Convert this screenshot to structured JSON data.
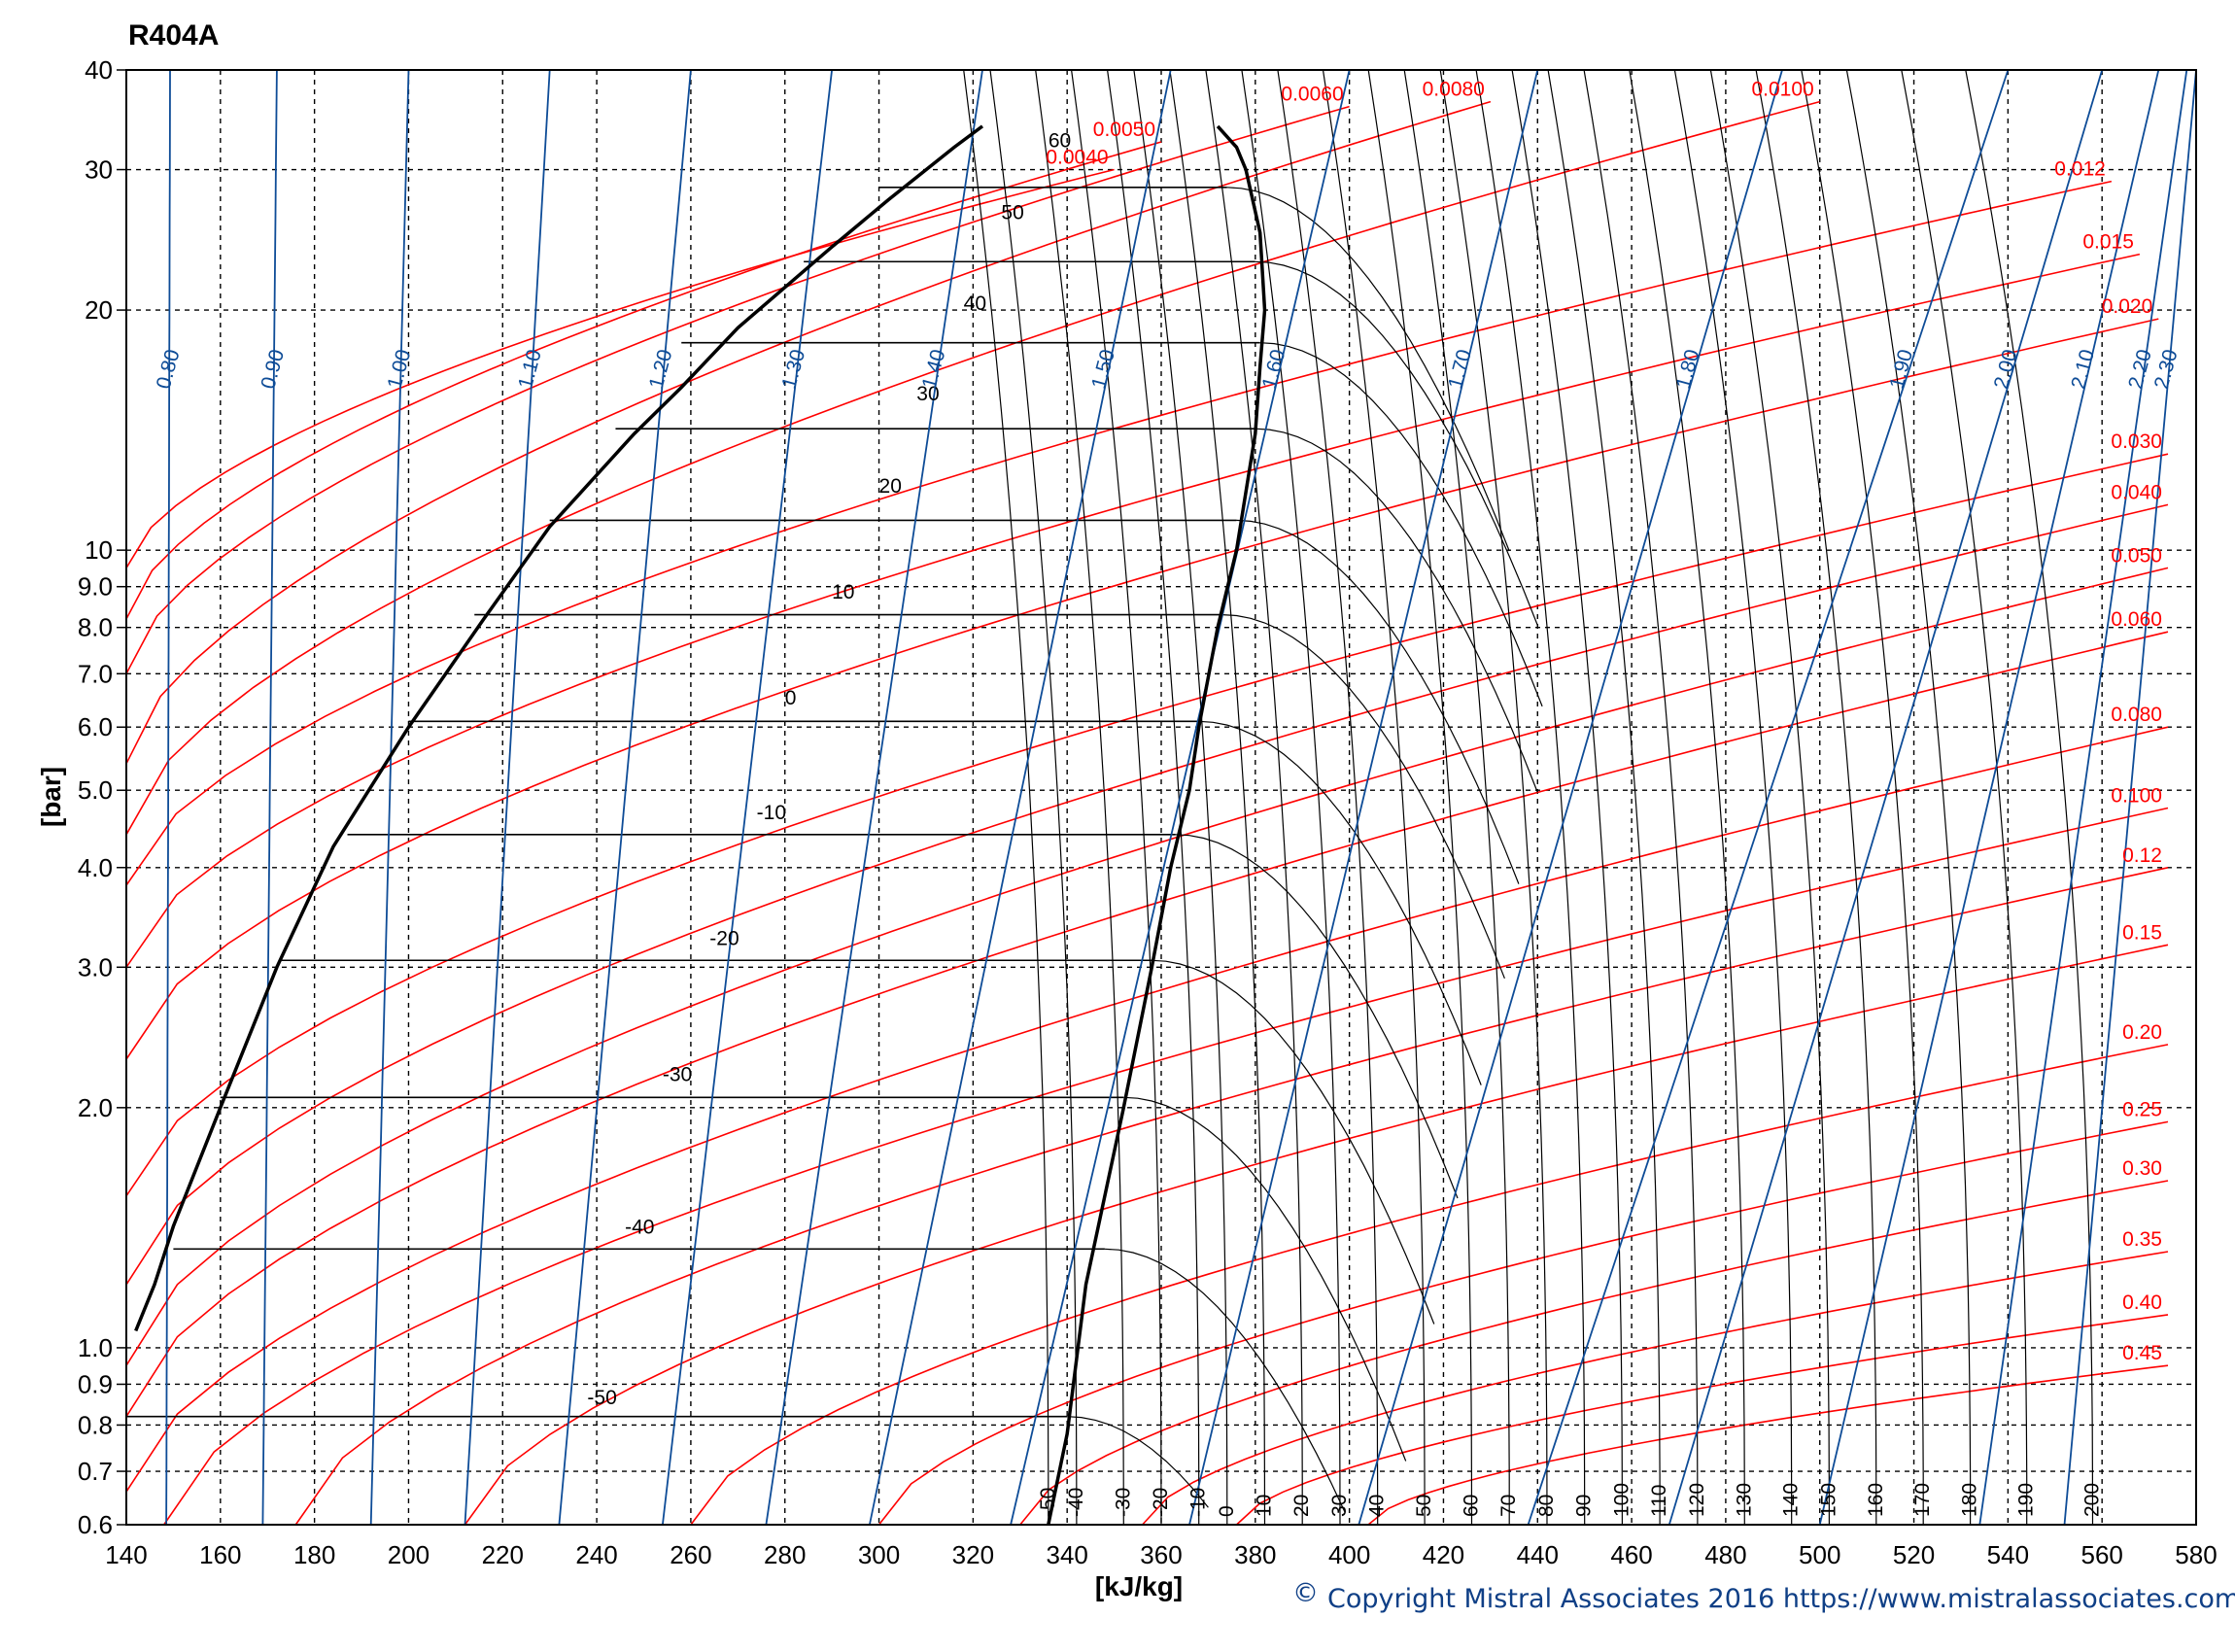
{
  "chart_data": {
    "type": "line",
    "title": "R404A",
    "xlabel": "[kJ/kg]",
    "ylabel": "[bar]",
    "xlim": [
      140,
      580
    ],
    "ylim": [
      0.6,
      40
    ],
    "yscale": "log",
    "grid": true,
    "x_ticks": [
      "140",
      "160",
      "180",
      "200",
      "220",
      "240",
      "260",
      "280",
      "300",
      "320",
      "340",
      "360",
      "380",
      "400",
      "420",
      "440",
      "460",
      "480",
      "500",
      "520",
      "540",
      "560",
      "580"
    ],
    "y_ticks": [
      {
        "value": 0.6,
        "label": "0.6"
      },
      {
        "value": 0.7,
        "label": "0.7"
      },
      {
        "value": 0.8,
        "label": "0.8"
      },
      {
        "value": 0.9,
        "label": "0.9"
      },
      {
        "value": 1.0,
        "label": "1.0"
      },
      {
        "value": 2.0,
        "label": "2.0"
      },
      {
        "value": 3.0,
        "label": "3.0"
      },
      {
        "value": 4.0,
        "label": "4.0"
      },
      {
        "value": 5.0,
        "label": "5.0"
      },
      {
        "value": 6.0,
        "label": "6.0"
      },
      {
        "value": 7.0,
        "label": "7.0"
      },
      {
        "value": 8.0,
        "label": "8.0"
      },
      {
        "value": 9.0,
        "label": "9.0"
      },
      {
        "value": 10,
        "label": "10"
      },
      {
        "value": 20,
        "label": "20"
      },
      {
        "value": 30,
        "label": "30"
      },
      {
        "value": 40,
        "label": "40"
      }
    ],
    "saturation_dome": {
      "liquid": [
        [
          142,
          1.05
        ],
        [
          146,
          1.2
        ],
        [
          150,
          1.42
        ],
        [
          160,
          2.0
        ],
        [
          172,
          3.0
        ],
        [
          184,
          4.25
        ],
        [
          200,
          6.0
        ],
        [
          216,
          8.2
        ],
        [
          230,
          10.7
        ],
        [
          248,
          14.0
        ],
        [
          258,
          16.0
        ],
        [
          270,
          19.0
        ],
        [
          290,
          24.0
        ],
        [
          302,
          27.5
        ],
        [
          316,
          32.0
        ],
        [
          322,
          34.0
        ]
      ],
      "vapor": [
        [
          336,
          0.6
        ],
        [
          340,
          0.78
        ],
        [
          344,
          1.2
        ],
        [
          352,
          2.0
        ],
        [
          358,
          3.0
        ],
        [
          362,
          4.0
        ],
        [
          366,
          5.0
        ],
        [
          368,
          6.0
        ],
        [
          372,
          8.0
        ],
        [
          376,
          10.0
        ],
        [
          380,
          14.0
        ],
        [
          381,
          17.0
        ],
        [
          382,
          20.0
        ],
        [
          381,
          25.0
        ],
        [
          378,
          30.0
        ],
        [
          376,
          32.0
        ],
        [
          372,
          34.0
        ]
      ]
    },
    "isotherms": [
      {
        "label": "60",
        "p": 28.5,
        "h_liq": 300.0,
        "h_vap": 374.0,
        "lx": 336,
        "ly": 32.0
      },
      {
        "label": "50",
        "p": 23.0,
        "h_liq": 284.0,
        "h_vap": 380.0,
        "lx": 326,
        "ly": 26.0
      },
      {
        "label": "40",
        "p": 18.2,
        "h_liq": 258.0,
        "h_vap": 381.0,
        "lx": 318,
        "ly": 20.0
      },
      {
        "label": "30",
        "p": 14.2,
        "h_liq": 244.0,
        "h_vap": 380.0,
        "lx": 308,
        "ly": 15.4
      },
      {
        "label": "20",
        "p": 10.9,
        "h_liq": 230.0,
        "h_vap": 376.0,
        "lx": 300,
        "ly": 11.8
      },
      {
        "label": "10",
        "p": 8.3,
        "h_liq": 214.0,
        "h_vap": 373.0,
        "lx": 290,
        "ly": 8.7
      },
      {
        "label": "0",
        "p": 6.1,
        "h_liq": 200.0,
        "h_vap": 368.0,
        "lx": 280,
        "ly": 6.4
      },
      {
        "label": "-10",
        "p": 4.4,
        "h_liq": 187.0,
        "h_vap": 363.0,
        "lx": 274,
        "ly": 4.6
      },
      {
        "label": "-20",
        "p": 3.06,
        "h_liq": 173.0,
        "h_vap": 358.0,
        "lx": 264,
        "ly": 3.2
      },
      {
        "label": "-30",
        "p": 2.06,
        "h_liq": 160.0,
        "h_vap": 352.0,
        "lx": 254,
        "ly": 2.16
      },
      {
        "label": "-40",
        "p": 1.33,
        "h_liq": 150.0,
        "h_vap": 348.0,
        "lx": 246,
        "ly": 1.39
      },
      {
        "label": "-50",
        "p": 0.82,
        "h_liq": 140.0,
        "h_vap": 340.0,
        "lx": 238,
        "ly": 0.85
      }
    ],
    "bottom_isotherm_labels": [
      "-50",
      "-40",
      "-30",
      "-20",
      "-10",
      "0",
      "10",
      "20",
      "30",
      "40",
      "50",
      "60",
      "70",
      "80",
      "90",
      "100",
      "110",
      "120",
      "130",
      "140",
      "150",
      "160",
      "170",
      "180",
      "190",
      "200"
    ],
    "bottom_isotherm_h": [
      336,
      342,
      352,
      360,
      368,
      374,
      382,
      390,
      398,
      406,
      416,
      426,
      434,
      442,
      450,
      458,
      466,
      474,
      484,
      494,
      502,
      512,
      522,
      532,
      544,
      558
    ],
    "isentropes": [
      {
        "label": "0.80",
        "h0": 148.5,
        "h1": 149.3
      },
      {
        "label": "0.90",
        "h0": 169.0,
        "h1": 172.0
      },
      {
        "label": "1.00",
        "h0": 192.0,
        "h1": 200.0
      },
      {
        "label": "1.10",
        "h0": 212.0,
        "h1": 230.0
      },
      {
        "label": "1.20",
        "h0": 232.0,
        "h1": 260.0
      },
      {
        "label": "1.30",
        "h0": 254.0,
        "h1": 290.0
      },
      {
        "label": "1.40",
        "h0": 276.0,
        "h1": 322.0
      },
      {
        "label": "1.50",
        "h0": 298.0,
        "h1": 362.0
      },
      {
        "label": "1.60",
        "h0": 328.0,
        "h1": 400.0
      },
      {
        "label": "1.70",
        "h0": 366.0,
        "h1": 440.0
      },
      {
        "label": "1.80",
        "h0": 402.0,
        "h1": 492.0
      },
      {
        "label": "1.90",
        "h0": 438.0,
        "h1": 540.0
      },
      {
        "label": "2.00",
        "h0": 468.0,
        "h1": 560.0
      },
      {
        "label": "2.10",
        "h0": 500.0,
        "h1": 572.0
      },
      {
        "label": "2.20",
        "h0": 534.0,
        "h1": 578.0
      },
      {
        "label": "2.30",
        "h0": 552.0,
        "h1": 580.0
      }
    ],
    "isochore_labels": [
      "0.0040",
      "0.0050",
      "0.0060",
      "0.0080",
      "0.0100",
      "0.012",
      "0.015",
      "0.020",
      "0.030",
      "0.040",
      "0.050",
      "0.060",
      "0.080",
      "0.100",
      "0.12",
      "0.15",
      "0.20",
      "0.25",
      "0.30",
      "0.35",
      "0.40",
      "0.45"
    ],
    "isochore_p_end": [
      30.0,
      32.5,
      36.0,
      36.5,
      36.5,
      29.0,
      23.5,
      19.5,
      13.2,
      11.4,
      9.5,
      7.9,
      6.0,
      4.75,
      4.0,
      3.2,
      2.4,
      1.92,
      1.62,
      1.32,
      1.1,
      0.95
    ],
    "isochore_p_start": [
      9.5,
      8.2,
      7.0,
      5.4,
      4.4,
      3.8,
      3.0,
      2.3,
      1.55,
      1.2,
      0.95,
      0.82,
      0.66,
      0.6,
      0.6,
      0.6,
      0.6,
      0.6,
      0.6,
      0.6,
      0.6,
      0.6
    ],
    "isochore_h_start": [
      140,
      140,
      140,
      140,
      140,
      140,
      140,
      140,
      140,
      140,
      140,
      140,
      140,
      148,
      176,
      212,
      260,
      300,
      330,
      356,
      376,
      404
    ],
    "isochore_h_end": [
      350,
      360,
      400,
      430,
      500,
      562,
      568,
      572,
      574,
      574,
      574,
      574,
      574,
      574,
      574,
      574,
      574,
      574,
      574,
      574,
      574,
      574
    ],
    "colors": {
      "isotherm": "#000000",
      "isentrope": "#0e4c97",
      "isochore": "#ff0000",
      "dome": "#000000",
      "grid": "#000000"
    }
  },
  "footer": {
    "copyright_symbol": "©",
    "copyright_text": "Copyright Mistral Associates 2016  https://www.mistralassociates.com"
  }
}
